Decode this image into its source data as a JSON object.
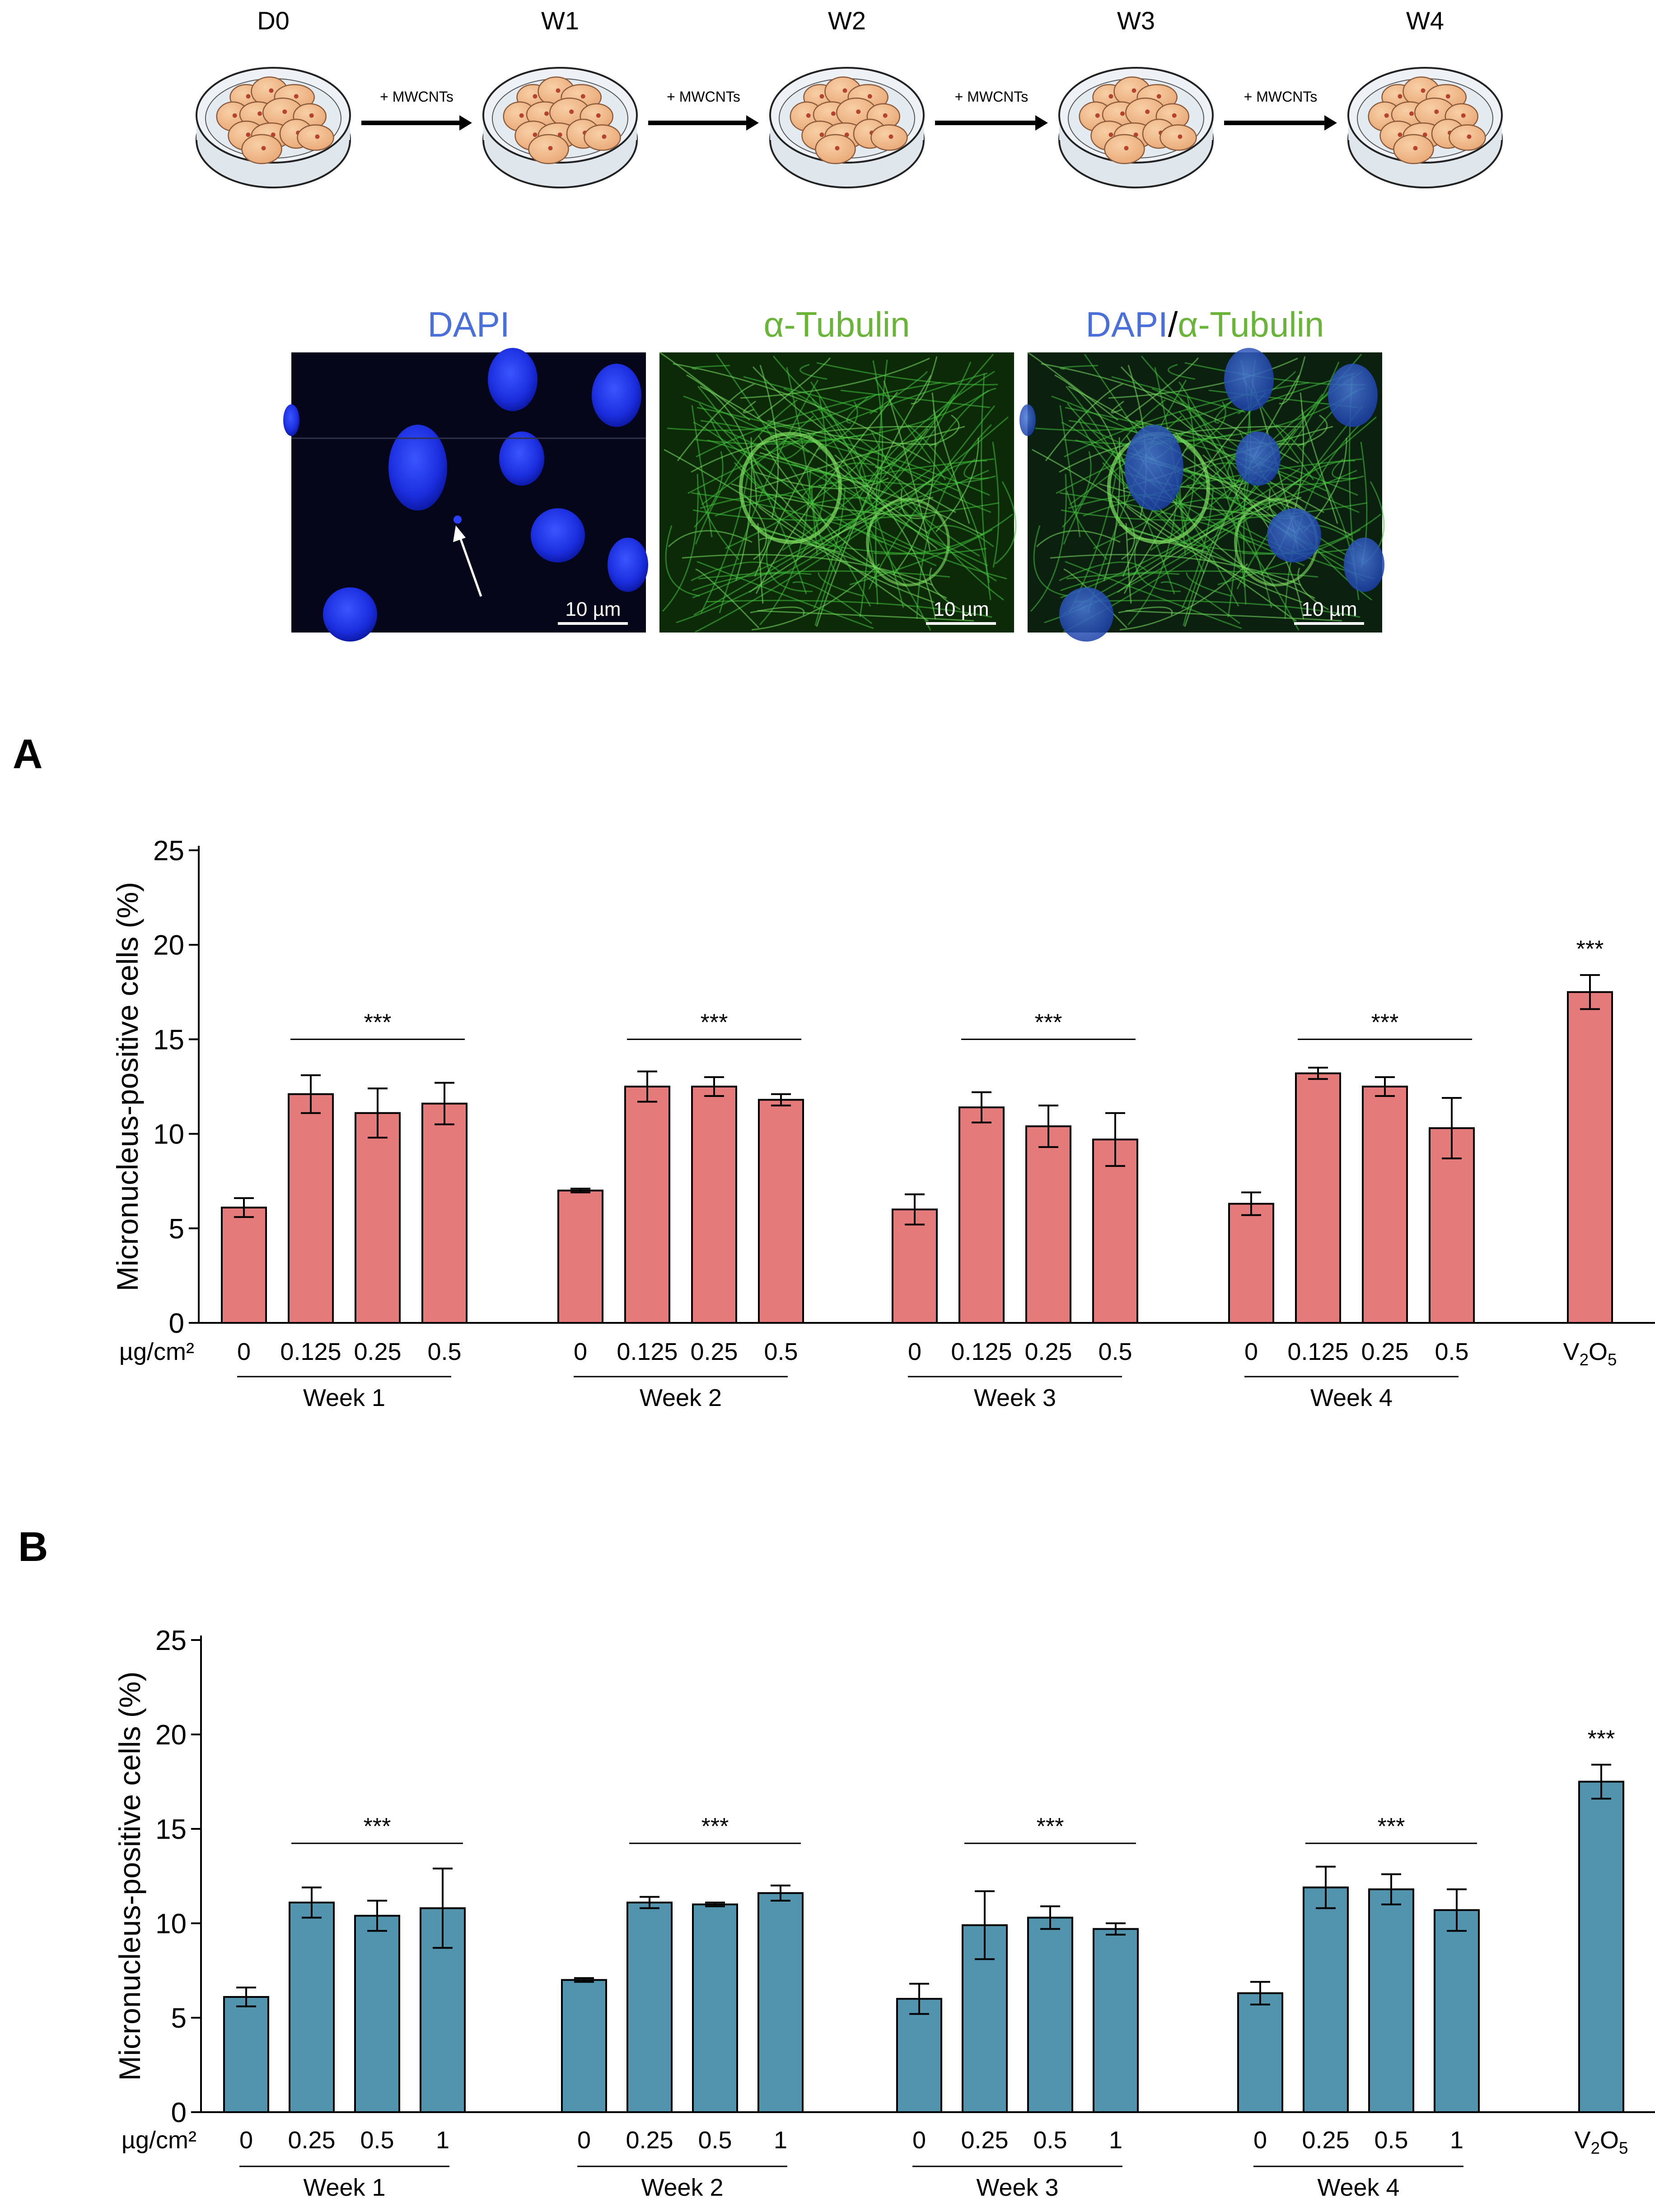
{
  "timeline": {
    "stages": [
      "D0",
      "W1",
      "W2",
      "W3",
      "W4"
    ],
    "treatment_label": "+ MWCNTs"
  },
  "micrographs": {
    "panels": [
      {
        "title_parts": [
          {
            "text": "DAPI",
            "color": "#4a6fd8"
          }
        ],
        "scale_bar": "10 µm"
      },
      {
        "title_parts": [
          {
            "text": "α-Tubulin",
            "color": "#6ab43a"
          }
        ],
        "scale_bar": "10 µm"
      },
      {
        "title_parts": [
          {
            "text": "DAPI",
            "color": "#4a6fd8"
          },
          {
            "text": "/",
            "color": "#000000"
          },
          {
            "text": "α-Tubulin",
            "color": "#6ab43a"
          }
        ],
        "scale_bar": "10 µm"
      }
    ]
  },
  "colors": {
    "panel_a_bar": "#e47a7a",
    "panel_b_bar": "#5294ad"
  },
  "chart_data": [
    {
      "panel": "A",
      "type": "bar",
      "ylabel": "Micronucleus-positive cells (%)",
      "ylim": [
        0,
        25
      ],
      "yticks": [
        0,
        5,
        10,
        15,
        20,
        25
      ],
      "unit_label": "µg/cm²",
      "groups": [
        {
          "name": "Week 1",
          "categories": [
            "0",
            "0.125",
            "0.25",
            "0.5"
          ],
          "values": [
            6.1,
            12.1,
            11.1,
            11.6
          ],
          "errors": [
            0.5,
            1.0,
            1.3,
            1.1
          ],
          "significance": "***"
        },
        {
          "name": "Week 2",
          "categories": [
            "0",
            "0.125",
            "0.25",
            "0.5"
          ],
          "values": [
            7.0,
            12.5,
            12.5,
            11.8
          ],
          "errors": [
            0.1,
            0.8,
            0.5,
            0.3
          ],
          "significance": "***"
        },
        {
          "name": "Week 3",
          "categories": [
            "0",
            "0.125",
            "0.25",
            "0.5"
          ],
          "values": [
            6.0,
            11.4,
            10.4,
            9.7
          ],
          "errors": [
            0.8,
            0.8,
            1.1,
            1.4
          ],
          "significance": "***"
        },
        {
          "name": "Week 4",
          "categories": [
            "0",
            "0.125",
            "0.25",
            "0.5"
          ],
          "values": [
            6.3,
            13.2,
            12.5,
            10.3
          ],
          "errors": [
            0.6,
            0.3,
            0.5,
            1.6
          ],
          "significance": "***"
        }
      ],
      "control": {
        "label": "V2O5",
        "value": 17.5,
        "error": 0.9,
        "significance": "***"
      }
    },
    {
      "panel": "B",
      "type": "bar",
      "ylabel": "Micronucleus-positive cells (%)",
      "ylim": [
        0,
        25
      ],
      "yticks": [
        0,
        5,
        10,
        15,
        20,
        25
      ],
      "unit_label": "µg/cm²",
      "groups": [
        {
          "name": "Week 1",
          "categories": [
            "0",
            "0.25",
            "0.5",
            "1"
          ],
          "values": [
            6.1,
            11.1,
            10.4,
            10.8
          ],
          "errors": [
            0.5,
            0.8,
            0.8,
            2.1
          ],
          "significance": "***"
        },
        {
          "name": "Week 2",
          "categories": [
            "0",
            "0.25",
            "0.5",
            "1"
          ],
          "values": [
            7.0,
            11.1,
            11.0,
            11.6
          ],
          "errors": [
            0.1,
            0.3,
            0.1,
            0.4
          ],
          "significance": "***"
        },
        {
          "name": "Week 3",
          "categories": [
            "0",
            "0.25",
            "0.5",
            "1"
          ],
          "values": [
            6.0,
            9.9,
            10.3,
            9.7
          ],
          "errors": [
            0.8,
            1.8,
            0.6,
            0.3
          ],
          "significance": "***"
        },
        {
          "name": "Week 4",
          "categories": [
            "0",
            "0.25",
            "0.5",
            "1"
          ],
          "values": [
            6.3,
            11.9,
            11.8,
            10.7
          ],
          "errors": [
            0.6,
            1.1,
            0.8,
            1.1
          ],
          "significance": "***"
        }
      ],
      "control": {
        "label": "V2O5",
        "value": 17.5,
        "error": 0.9,
        "significance": "***"
      }
    }
  ]
}
